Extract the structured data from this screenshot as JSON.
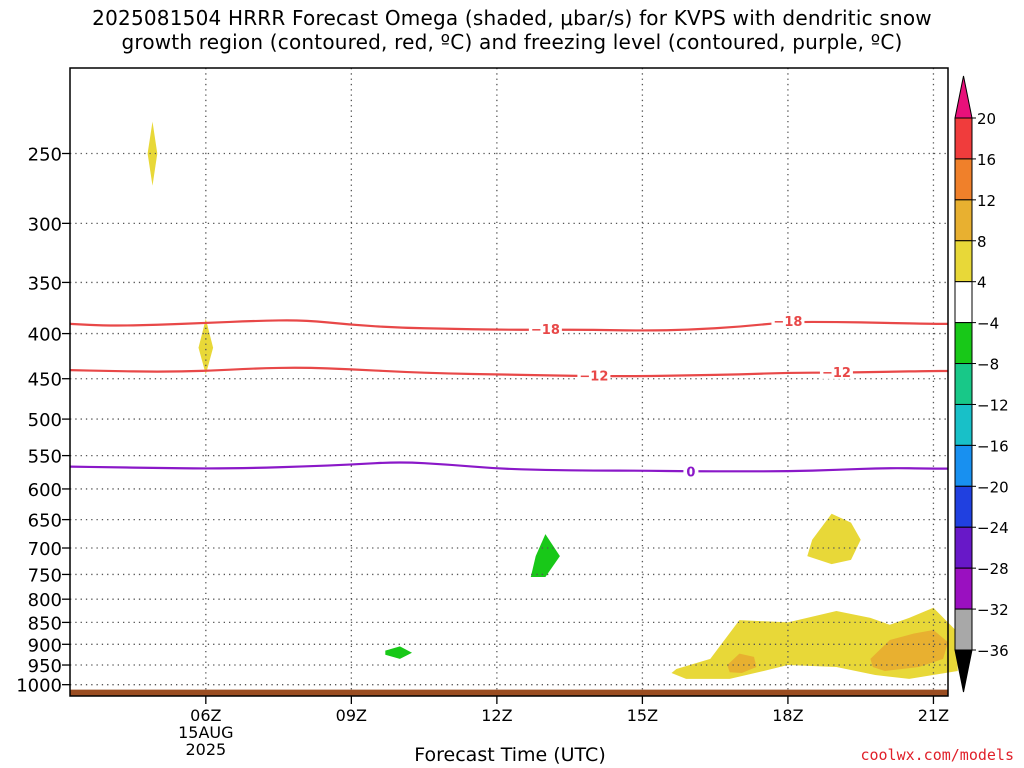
{
  "title": {
    "line1": "2025081504 HRRR Forecast Omega (shaded, μbar/s) for KVPS with dendritic snow",
    "line2": "growth region (contoured, red, ºC) and freezing level (contoured, purple, ºC)"
  },
  "credit": "coolwx.com/models",
  "chart_data": {
    "type": "contour",
    "xlabel": "Forecast Time (UTC)",
    "ylabel": "",
    "x_range_hours": [
      3.2,
      21.3
    ],
    "x_ticks": [
      {
        "hour": 6,
        "label": "06Z",
        "sub1": "15AUG",
        "sub2": "2025"
      },
      {
        "hour": 9,
        "label": "09Z",
        "sub1": "",
        "sub2": ""
      },
      {
        "hour": 12,
        "label": "12Z",
        "sub1": "",
        "sub2": ""
      },
      {
        "hour": 15,
        "label": "15Z",
        "sub1": "",
        "sub2": ""
      },
      {
        "hour": 18,
        "label": "18Z",
        "sub1": "",
        "sub2": ""
      },
      {
        "hour": 21,
        "label": "21Z",
        "sub1": "",
        "sub2": ""
      }
    ],
    "y_axis": "pressure (hPa), log scale, inverted",
    "y_range": [
      1030,
      200
    ],
    "y_ticks": [
      250,
      300,
      350,
      400,
      450,
      500,
      550,
      600,
      650,
      700,
      750,
      800,
      850,
      900,
      950,
      1000
    ],
    "grid": "dotted",
    "ground_level_hpa": 1013,
    "ground_color": "#9a4d21",
    "colorbar": {
      "position": "right",
      "labels": [
        "20",
        "16",
        "12",
        "8",
        "4",
        "−4",
        "−8",
        "−12",
        "−16",
        "−20",
        "−24",
        "−28",
        "−32",
        "−36"
      ],
      "colors": [
        "#e8107a",
        "#f03c3c",
        "#f0802a",
        "#e8b030",
        "#e8d838",
        "#ffffff",
        "#18c818",
        "#18c888",
        "#18c0c8",
        "#1890f0",
        "#2040e0",
        "#6818c8",
        "#9a10c0",
        "#a8a8a8",
        "#000000"
      ]
    },
    "contours": [
      {
        "name": "",
        "level": -18,
        "label": "−18",
        "color": "#e84848",
        "points": [
          [
            3.2,
            390
          ],
          [
            4,
            392
          ],
          [
            5,
            391
          ],
          [
            6,
            389
          ],
          [
            7,
            387
          ],
          [
            8,
            386
          ],
          [
            9,
            391
          ],
          [
            10,
            394
          ],
          [
            11,
            395
          ],
          [
            12,
            396
          ],
          [
            13,
            396
          ],
          [
            14,
            396
          ],
          [
            15,
            397
          ],
          [
            16,
            396
          ],
          [
            17,
            393
          ],
          [
            18,
            388
          ],
          [
            19,
            388
          ],
          [
            20,
            389
          ],
          [
            21,
            390
          ],
          [
            21.3,
            390
          ]
        ],
        "label_at": [
          [
            13.0,
            395
          ],
          [
            18.0,
            387
          ]
        ]
      },
      {
        "name": "",
        "level": -12,
        "label": "−12",
        "color": "#e84848",
        "points": [
          [
            3.2,
            440
          ],
          [
            4,
            441
          ],
          [
            5,
            442
          ],
          [
            6,
            441
          ],
          [
            7,
            438
          ],
          [
            8,
            437
          ],
          [
            9,
            439
          ],
          [
            10,
            442
          ],
          [
            11,
            444
          ],
          [
            12,
            445
          ],
          [
            13,
            446
          ],
          [
            14,
            447
          ],
          [
            15,
            447
          ],
          [
            16,
            446
          ],
          [
            17,
            445
          ],
          [
            18,
            443
          ],
          [
            19,
            443
          ],
          [
            20,
            442
          ],
          [
            21,
            441
          ],
          [
            21.3,
            441
          ]
        ],
        "label_at": [
          [
            14.0,
            446
          ],
          [
            19.0,
            442
          ]
        ]
      },
      {
        "name": "",
        "level": 0,
        "label": "0",
        "color": "#8a18c8",
        "points": [
          [
            3.2,
            566
          ],
          [
            4,
            567
          ],
          [
            5,
            568
          ],
          [
            6,
            569
          ],
          [
            7,
            568
          ],
          [
            8,
            566
          ],
          [
            9,
            563
          ],
          [
            10,
            559
          ],
          [
            11,
            563
          ],
          [
            12,
            569
          ],
          [
            13,
            571
          ],
          [
            14,
            572
          ],
          [
            15,
            572
          ],
          [
            16,
            573
          ],
          [
            17,
            573
          ],
          [
            18,
            573
          ],
          [
            19,
            571
          ],
          [
            20,
            568
          ],
          [
            21,
            569
          ],
          [
            21.3,
            569
          ]
        ],
        "label_at": [
          [
            16.0,
            573
          ]
        ]
      }
    ],
    "shaded_regions": [
      {
        "range": "4 to 8",
        "color": "#e8d838",
        "points": [
          [
            4.9,
            230
          ],
          [
            5.0,
            250
          ],
          [
            4.9,
            272
          ],
          [
            4.8,
            250
          ]
        ]
      },
      {
        "range": "4 to 8",
        "color": "#e8d838",
        "points": [
          [
            6.0,
            385
          ],
          [
            6.15,
            415
          ],
          [
            6.0,
            445
          ],
          [
            5.85,
            415
          ]
        ]
      },
      {
        "range": "-8 to -4",
        "color": "#18c818",
        "points": [
          [
            13.0,
            675
          ],
          [
            13.3,
            715
          ],
          [
            13.0,
            755
          ],
          [
            12.7,
            755
          ],
          [
            12.8,
            715
          ]
        ]
      },
      {
        "range": "-8 to -4",
        "color": "#18c818",
        "points": [
          [
            9.7,
            915
          ],
          [
            10.0,
            905
          ],
          [
            10.25,
            920
          ],
          [
            10.0,
            935
          ],
          [
            9.7,
            925
          ]
        ]
      },
      {
        "range": "4 to 8",
        "color": "#e8d838",
        "points": [
          [
            18.5,
            685
          ],
          [
            18.9,
            640
          ],
          [
            19.3,
            655
          ],
          [
            19.5,
            685
          ],
          [
            19.3,
            722
          ],
          [
            18.9,
            730
          ],
          [
            18.4,
            715
          ]
        ]
      },
      {
        "range": "4 to 8",
        "color": "#e8d838",
        "points": [
          [
            15.7,
            960
          ],
          [
            16.4,
            935
          ],
          [
            17.0,
            845
          ],
          [
            18.0,
            850
          ],
          [
            19.0,
            825
          ],
          [
            19.7,
            840
          ],
          [
            20.1,
            855
          ],
          [
            20.5,
            840
          ],
          [
            21.0,
            818
          ],
          [
            21.5,
            872
          ],
          [
            21.5,
            965
          ],
          [
            20.5,
            985
          ],
          [
            19.8,
            975
          ],
          [
            19.0,
            955
          ],
          [
            18.0,
            950
          ],
          [
            17.5,
            965
          ],
          [
            16.8,
            985
          ],
          [
            15.9,
            985
          ],
          [
            15.6,
            970
          ]
        ]
      },
      {
        "range": "8 to 12",
        "color": "#e8b030",
        "points": [
          [
            16.75,
            950
          ],
          [
            17.0,
            922
          ],
          [
            17.3,
            930
          ],
          [
            17.35,
            955
          ],
          [
            17.05,
            970
          ],
          [
            16.8,
            968
          ]
        ]
      },
      {
        "range": "8 to 12",
        "color": "#e8b030",
        "points": [
          [
            19.7,
            935
          ],
          [
            20.1,
            890
          ],
          [
            20.6,
            875
          ],
          [
            21.0,
            867
          ],
          [
            21.3,
            895
          ],
          [
            21.2,
            935
          ],
          [
            20.7,
            955
          ],
          [
            20.0,
            965
          ],
          [
            19.75,
            955
          ]
        ]
      }
    ]
  }
}
